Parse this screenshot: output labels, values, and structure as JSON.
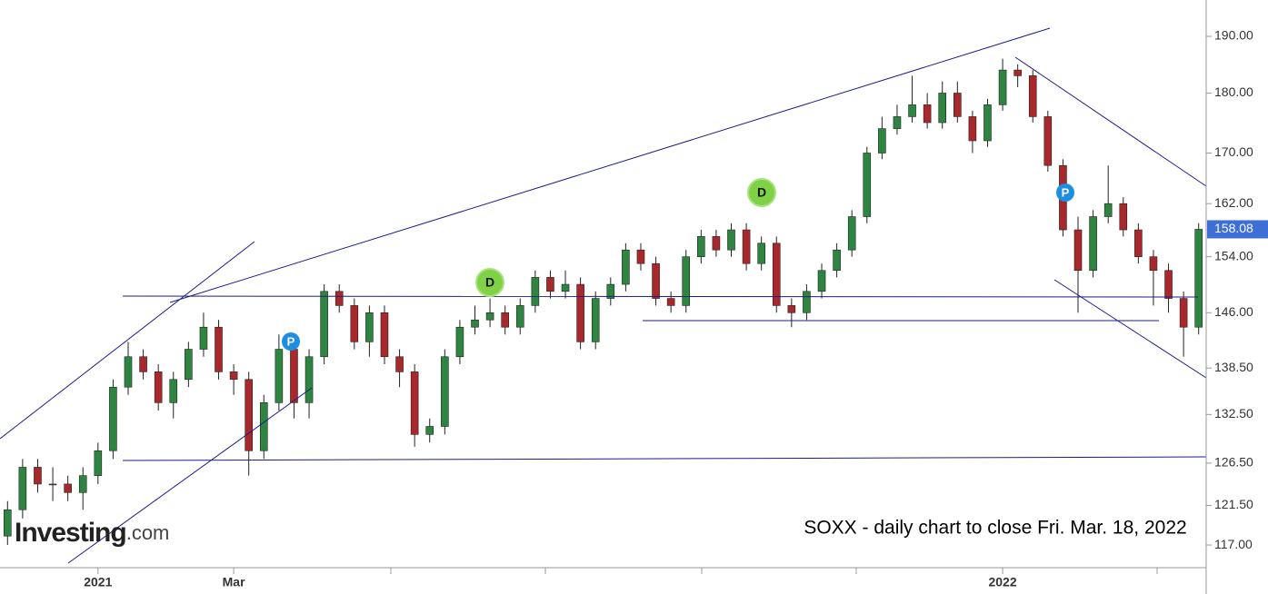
{
  "chart_data": {
    "type": "candlestick",
    "annotation": "SOXX - daily chart to close Fri. Mar. 18, 2022",
    "logo": "Investing",
    "logo_suffix": ".com",
    "markers": [
      "P",
      "D",
      "D",
      "P"
    ],
    "categories": [
      null,
      null,
      null,
      null,
      null,
      null,
      "2021",
      null,
      null,
      null,
      null,
      null,
      null,
      null,
      null,
      "Mar",
      null,
      null,
      null,
      null,
      null,
      null,
      null,
      null,
      null,
      null,
      null,
      null,
      null,
      null,
      null,
      null,
      null,
      null,
      null,
      null,
      null,
      null,
      null,
      null,
      null,
      null,
      null,
      null,
      null,
      null,
      null,
      null,
      null,
      null,
      null,
      null,
      null,
      null,
      null,
      null,
      null,
      null,
      null,
      null,
      null,
      null,
      null,
      null,
      null,
      null,
      "2022",
      null,
      null,
      null,
      null,
      null,
      null,
      null,
      null,
      null,
      null,
      null,
      null,
      null
    ],
    "open": [
      118,
      121,
      126,
      124,
      124,
      123,
      125,
      128,
      136,
      140,
      138,
      134,
      137,
      141,
      144,
      138,
      137,
      128,
      134,
      141,
      134,
      140,
      149,
      147,
      142,
      146,
      140,
      138,
      130,
      131,
      140,
      144,
      145,
      146,
      144,
      147,
      151,
      149,
      150,
      142,
      148,
      150,
      155,
      153,
      148,
      147,
      154,
      157,
      155,
      158,
      153,
      156,
      147,
      146,
      149,
      152,
      155,
      160,
      170,
      174,
      176,
      178,
      175,
      180,
      176,
      172,
      178,
      184,
      183,
      176,
      168,
      158,
      152,
      160,
      162,
      158,
      154,
      152,
      148,
      144
    ],
    "high": [
      122,
      127,
      127,
      126,
      125,
      126,
      129,
      137,
      142,
      141,
      139,
      138,
      142,
      146,
      145,
      139,
      138,
      135,
      143,
      142,
      141,
      150,
      150,
      148,
      147,
      147,
      141,
      139,
      132,
      141,
      145,
      147,
      148,
      147,
      148,
      152,
      152,
      152,
      151,
      149,
      151,
      156,
      156,
      154,
      149,
      155,
      158,
      158,
      159,
      159,
      157,
      157,
      148,
      150,
      153,
      156,
      161,
      171,
      176,
      178,
      183,
      180,
      182,
      182,
      177,
      179,
      186,
      185,
      184,
      177,
      169,
      160,
      161,
      168,
      163,
      159,
      155,
      153,
      149,
      159
    ],
    "low": [
      117,
      120,
      123,
      122,
      122,
      121,
      124,
      127,
      135,
      137,
      133,
      132,
      136,
      140,
      137,
      135,
      125,
      127,
      133,
      132,
      132,
      139,
      146,
      141,
      140,
      139,
      136,
      128.5,
      129,
      130,
      139,
      143,
      144,
      143,
      143,
      146,
      148,
      148,
      141,
      141,
      147,
      149,
      152,
      147,
      146,
      146,
      153,
      154,
      154,
      152,
      152,
      146,
      144,
      145,
      148,
      151,
      154,
      159,
      169,
      173,
      175,
      174,
      174,
      175,
      170,
      171,
      177,
      181,
      175,
      167,
      157,
      146,
      151,
      159,
      157,
      153,
      147,
      146,
      140,
      143
    ],
    "close": [
      121,
      126,
      124,
      124,
      123,
      125,
      128,
      136,
      140,
      138,
      134,
      137,
      141,
      144,
      138,
      137,
      128,
      134,
      141,
      134,
      140,
      149,
      147,
      142,
      146,
      140,
      138,
      130,
      131,
      140,
      144,
      145,
      146,
      144,
      147,
      151,
      149,
      150,
      142,
      148,
      150,
      155,
      153,
      148,
      147,
      154,
      157,
      155,
      158,
      153,
      156,
      147,
      146,
      149,
      152,
      155,
      160,
      170,
      174,
      176,
      178,
      175,
      180,
      176,
      172,
      178,
      184,
      183,
      176,
      168,
      158,
      152,
      160,
      162,
      158,
      154,
      152,
      148,
      144,
      158.08
    ],
    "up_color": "#2e8540",
    "down_color": "#a8282c",
    "log_scale": true,
    "ylim": [
      114.5,
      196.7
    ],
    "yticks": [
      {
        "value": 117,
        "label": "117.00"
      },
      {
        "value": 121.5,
        "label": "121.50"
      },
      {
        "value": 126.5,
        "label": "126.50"
      },
      {
        "value": 132.5,
        "label": "132.50"
      },
      {
        "value": 138.5,
        "label": "138.50"
      },
      {
        "value": 146,
        "label": "146.00"
      },
      {
        "value": 154,
        "label": "154.00"
      },
      {
        "value": 162,
        "label": "162.00"
      },
      {
        "value": 170,
        "label": "170.00"
      },
      {
        "value": 180,
        "label": "180.00"
      },
      {
        "value": 190,
        "label": "190.00"
      }
    ]
  }
}
